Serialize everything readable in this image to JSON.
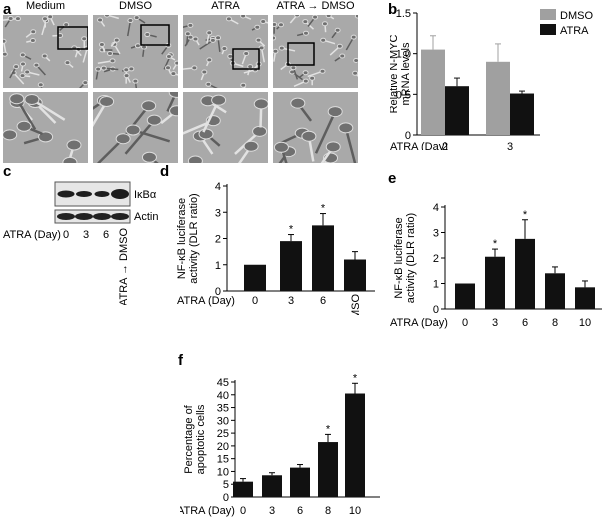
{
  "panels": {
    "a": {
      "letter": "a",
      "conditions": [
        "Medium",
        "DMSO",
        "ATRA",
        "ATRA → DMSO"
      ]
    },
    "b": {
      "letter": "b",
      "legend": [
        "DMSO",
        "ATRA"
      ],
      "ylabel_line1": "Relative N-MYC",
      "ylabel_line2": "mRNA levels",
      "xlabel": "ATRA (Day)"
    },
    "c": {
      "letter": "c",
      "band_labels": [
        "IκBα",
        "Actin"
      ],
      "xlabel": "ATRA (Day)",
      "lanes": [
        "0",
        "3",
        "6",
        "ATRA → DMSO"
      ]
    },
    "d": {
      "letter": "d",
      "ylabel_line1": "NF-κB luciferase",
      "ylabel_line2": "activity (DLR ratio)",
      "xlabel": "ATRA (Day)"
    },
    "e": {
      "letter": "e",
      "ylabel_line1": "NF-κB luciferase",
      "ylabel_line2": "activity (DLR ratio)",
      "xlabel": "ATRA (Day)"
    },
    "f": {
      "letter": "f",
      "ylabel_line1": "Percentage of",
      "ylabel_line2": "apoptotic cells",
      "xlabel": "ATRA (Day)"
    }
  },
  "colors": {
    "dmso": "#a0a0a0",
    "atra": "#111111",
    "bar": "#111111"
  },
  "chart_data": [
    {
      "id": "b",
      "type": "bar",
      "categories": [
        "2",
        "3"
      ],
      "series": [
        {
          "name": "DMSO",
          "values": [
            1.05,
            0.9
          ],
          "errors": [
            0.17,
            0.22
          ]
        },
        {
          "name": "ATRA",
          "values": [
            0.6,
            0.51
          ],
          "errors": [
            0.1,
            0.03
          ]
        }
      ],
      "yticks": [
        "0",
        "0.5",
        "1.0",
        "1.5"
      ],
      "ylim": [
        0,
        1.5
      ],
      "legend_position": "top-right"
    },
    {
      "id": "d",
      "type": "bar",
      "categories": [
        "0",
        "3",
        "6",
        "ATRA → DMSO"
      ],
      "values": [
        1.0,
        1.9,
        2.5,
        1.2
      ],
      "errors": [
        0.0,
        0.25,
        0.45,
        0.3
      ],
      "significant": [
        false,
        true,
        true,
        false
      ],
      "yticks": [
        "0",
        "1",
        "2",
        "3",
        "4"
      ],
      "ylim": [
        0,
        4
      ]
    },
    {
      "id": "e",
      "type": "bar",
      "categories": [
        "0",
        "3",
        "6",
        "8",
        "10"
      ],
      "values": [
        1.0,
        2.05,
        2.75,
        1.4,
        0.85
      ],
      "errors": [
        0.0,
        0.3,
        0.75,
        0.25,
        0.25
      ],
      "significant": [
        false,
        true,
        true,
        false,
        false
      ],
      "yticks": [
        "0",
        "1",
        "2",
        "3",
        "4"
      ],
      "ylim": [
        0,
        4
      ]
    },
    {
      "id": "f",
      "type": "bar",
      "categories": [
        "0",
        "3",
        "6",
        "8",
        "10"
      ],
      "values": [
        6,
        8.5,
        11.5,
        21.5,
        40.5
      ],
      "errors": [
        1.2,
        1.0,
        1.2,
        3.0,
        4.0
      ],
      "significant": [
        false,
        false,
        false,
        true,
        true
      ],
      "yticks": [
        "0",
        "5",
        "10",
        "15",
        "20",
        "25",
        "30",
        "35",
        "40",
        "45"
      ],
      "ylim": [
        0,
        45
      ]
    }
  ]
}
